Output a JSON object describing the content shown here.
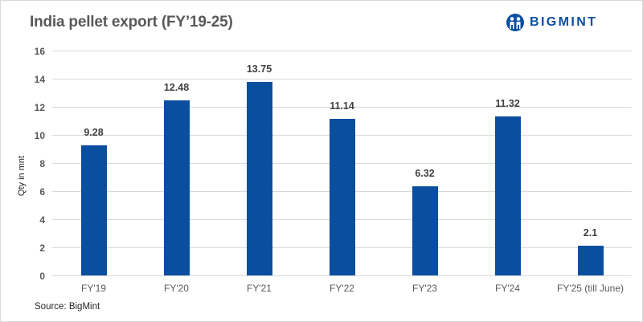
{
  "header": {
    "title": "India pellet export (FY’19-25)",
    "brand": "BIGMINT"
  },
  "footer": {
    "source": "Source: BigMint"
  },
  "colors": {
    "bar": "#0a4ea0",
    "brand": "#0b4ea2",
    "grid": "#d9d9d9",
    "title": "#595959"
  },
  "chart_data": {
    "type": "bar",
    "title": "India pellet export (FY’19-25)",
    "xlabel": "",
    "ylabel": "Qty in mnt",
    "ylim": [
      0,
      16
    ],
    "yticks": [
      "0",
      "2",
      "4",
      "6",
      "8",
      "10",
      "12",
      "14",
      "16"
    ],
    "grid": true,
    "legend": null,
    "categories": [
      "FY'19",
      "FY'20",
      "FY'21",
      "FY'22",
      "FY'23",
      "FY'24",
      "FY'25 (till June)"
    ],
    "values": [
      9.28,
      12.48,
      13.75,
      11.14,
      6.32,
      11.32,
      2.1
    ],
    "value_labels": [
      "9.28",
      "12.48",
      "13.75",
      "11.14",
      "6.32",
      "11.32",
      "2.1"
    ],
    "source": "Source: BigMint"
  }
}
